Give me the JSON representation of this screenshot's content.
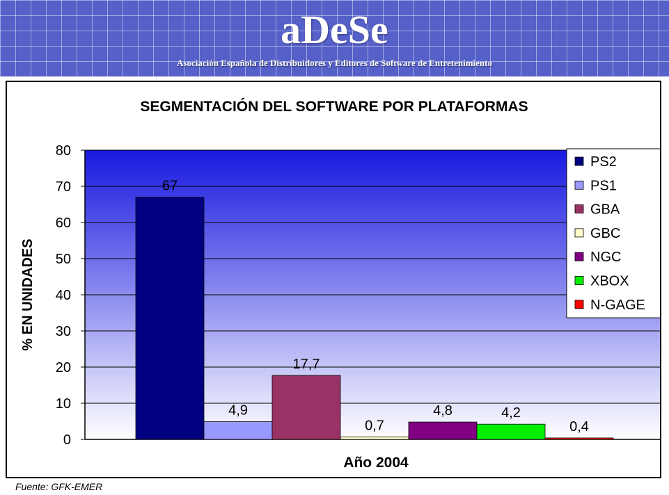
{
  "header": {
    "brand": "aDeSe",
    "organization": "Asociación Española de Distribuidores y Editores de Software de Entretenimiento"
  },
  "chart_data": {
    "type": "bar",
    "title": "SEGMENTACIÓN DEL SOFTWARE POR PLATAFORMAS",
    "xlabel": "Año 2004",
    "ylabel": "% EN UNIDADES",
    "ylim": [
      0,
      80
    ],
    "yticks": [
      0,
      10,
      20,
      30,
      40,
      50,
      60,
      70,
      80
    ],
    "grid": true,
    "legend_position": "top-right",
    "category": "Año 2004",
    "series": [
      {
        "name": "PS2",
        "value": 67,
        "label": "67",
        "color": "#000080"
      },
      {
        "name": "PS1",
        "value": 4.9,
        "label": "4,9",
        "color": "#9999ff"
      },
      {
        "name": "GBA",
        "value": 17.7,
        "label": "17,7",
        "color": "#993366"
      },
      {
        "name": "GBC",
        "value": 0.7,
        "label": "0,7",
        "color": "#ffffcc"
      },
      {
        "name": "NGC",
        "value": 4.8,
        "label": "4,8",
        "color": "#800080"
      },
      {
        "name": "XBOX",
        "value": 4.2,
        "label": "4,2",
        "color": "#00ee00"
      },
      {
        "name": "N-GAGE",
        "value": 0.4,
        "label": "0,4",
        "color": "#ff0000"
      }
    ],
    "background_gradient": [
      "#1818e0",
      "#ffffff"
    ]
  },
  "footer": {
    "source": "Fuente: GFK-EMER"
  }
}
